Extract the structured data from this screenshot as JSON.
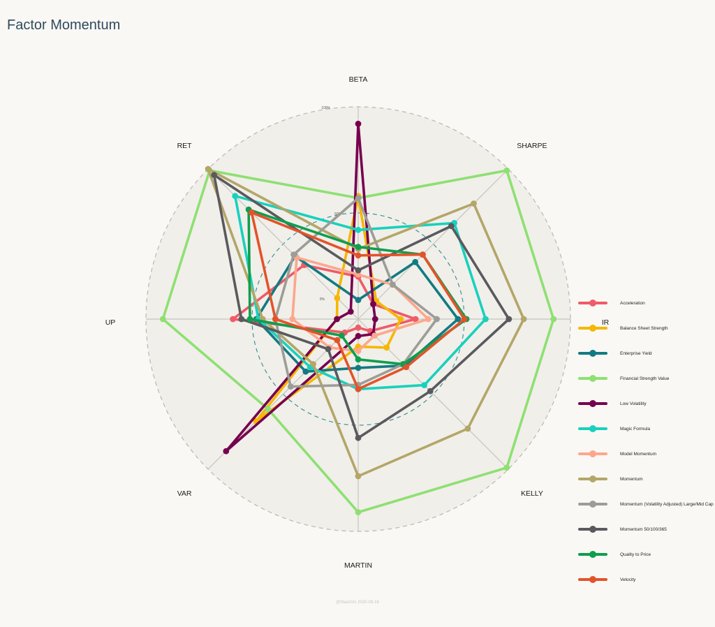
{
  "title": "Factor Momentum",
  "watermark": "@StackVis 2020-09-16",
  "chart_data": {
    "type": "radar",
    "axes": [
      "BETA",
      "SHARPE",
      "IR",
      "KELLY",
      "MARTIN",
      "VAR",
      "UP",
      "RET"
    ],
    "rlim": [
      0,
      100
    ],
    "ring_labels": [
      "100%",
      "50%",
      "0%"
    ],
    "series": [
      {
        "name": "Acceleration",
        "color": "#ef5b68",
        "values": [
          20,
          10,
          27,
          8,
          4,
          9,
          59,
          36
        ]
      },
      {
        "name": "Balance Sheet Strength",
        "color": "#f5b700",
        "values": [
          58,
          12,
          20,
          19,
          13,
          68,
          10,
          14
        ]
      },
      {
        "name": "Enterprise Yield",
        "color": "#127a82",
        "values": [
          9,
          38,
          47,
          31,
          23,
          35,
          48,
          42
        ]
      },
      {
        "name": "Financial Strength Value",
        "color": "#8ee072",
        "values": [
          57,
          99,
          92,
          99,
          91,
          60,
          92,
          99
        ]
      },
      {
        "name": "Low Volatility",
        "color": "#76004f",
        "values": [
          92,
          10,
          8,
          10,
          8,
          88,
          10,
          5
        ]
      },
      {
        "name": "Magic Formula",
        "color": "#18d1bd",
        "values": [
          42,
          64,
          60,
          44,
          33,
          32,
          47,
          82
        ]
      },
      {
        "name": "Model Momentum",
        "color": "#fca78d",
        "values": [
          21,
          23,
          33,
          11,
          15,
          19,
          31,
          41
        ]
      },
      {
        "name": "Momentum",
        "color": "#b3a668",
        "values": [
          33,
          77,
          78,
          73,
          74,
          30,
          45,
          100
        ]
      },
      {
        "name": "Momentum (Volatility Adjusted) Large/Mid Cap",
        "color": "#9d9d97",
        "values": [
          57,
          23,
          37,
          30,
          31,
          45,
          39,
          43
        ]
      },
      {
        "name": "Momentum 50/100/365",
        "color": "#5a5a5e",
        "values": [
          23,
          62,
          71,
          48,
          56,
          20,
          55,
          96
        ]
      },
      {
        "name": "Quality to Price",
        "color": "#0f9e4e",
        "values": [
          34,
          43,
          51,
          30,
          19,
          11,
          51,
          73
        ]
      },
      {
        "name": "Velocity",
        "color": "#e3532a",
        "values": [
          30,
          43,
          50,
          32,
          33,
          14,
          39,
          71
        ]
      }
    ]
  }
}
